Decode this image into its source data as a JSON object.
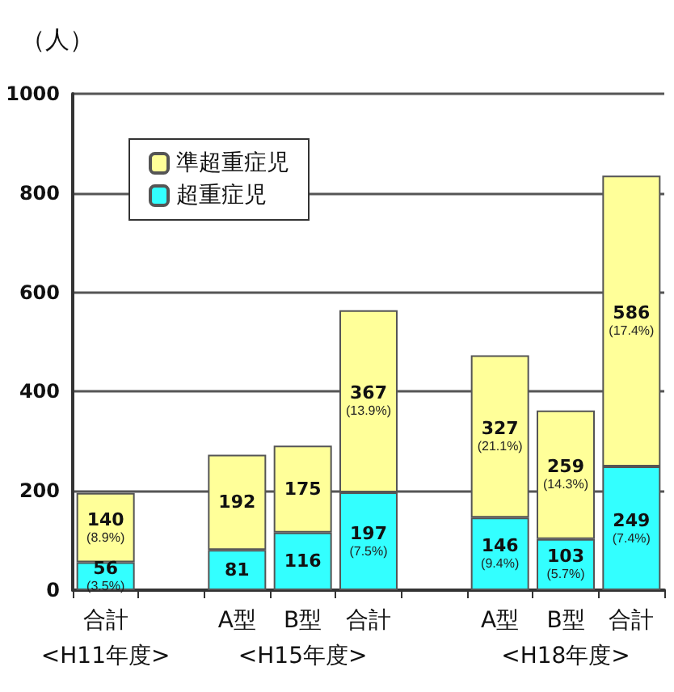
{
  "chart_data": {
    "type": "bar",
    "stacked": true,
    "ylabel": "（人）",
    "categories": [
      "合計\n<H11年度>",
      null,
      "A型",
      "B型\n<H15年度>",
      "合計",
      null,
      "A型",
      "B型\n<H18年度>",
      "合計"
    ],
    "series": [
      {
        "name": "超重症児",
        "color": "#33ffff",
        "values": [
          56,
          null,
          81,
          116,
          197,
          null,
          146,
          103,
          249
        ],
        "value_labels": [
          "56\n(3.5%)",
          null,
          "81",
          "116",
          "197\n(7.5%)",
          null,
          "146\n(9.4%)",
          "103\n(5.7%)",
          "249\n(7.4%)"
        ]
      },
      {
        "name": "準超重症児",
        "color": "#ffff99",
        "values": [
          140,
          null,
          192,
          175,
          367,
          null,
          327,
          259,
          586
        ],
        "value_labels": [
          "140\n(8.9%)",
          null,
          "192",
          "175",
          "367\n(13.9%)",
          null,
          "327\n(21.1%)",
          "259\n(14.3%)",
          "586\n(17.4%)"
        ]
      }
    ],
    "ylim": [
      0,
      1000
    ],
    "yticks": [
      0,
      200,
      400,
      600,
      800,
      1000
    ],
    "grid": "y",
    "legend": "top left"
  }
}
